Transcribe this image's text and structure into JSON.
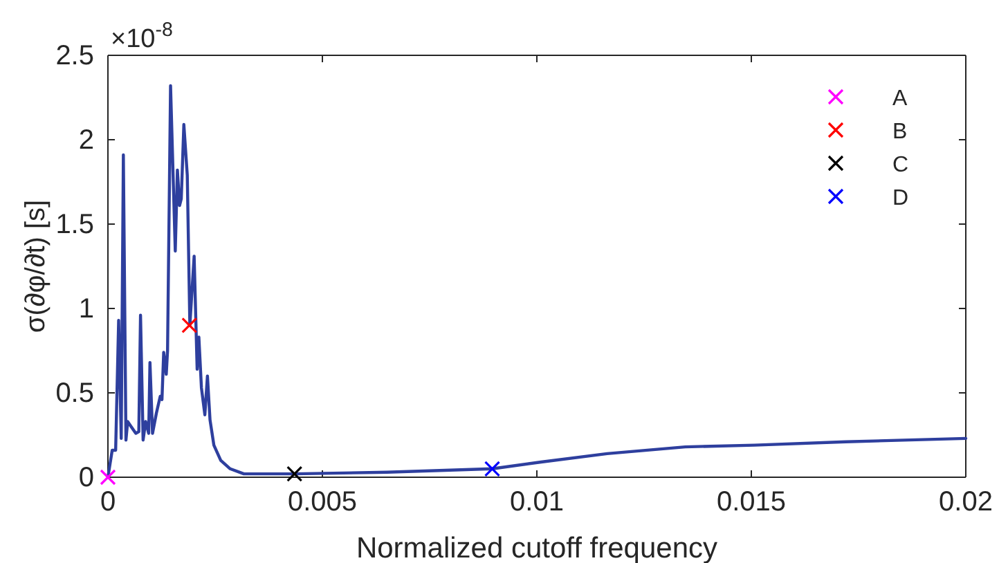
{
  "chart_data": {
    "type": "line",
    "xlabel": "Normalized cutoff frequency",
    "ylabel": "σ(∂φ/∂t) [s]",
    "annotations": [
      "×10$^{-8}$"
    ],
    "xlim": [
      0,
      0.02
    ],
    "ylim": [
      0,
      2.5
    ],
    "xticks": [
      0,
      0.005,
      0.01,
      0.015,
      0.02
    ],
    "yticks": [
      0,
      0.5,
      1,
      1.5,
      2,
      2.5
    ],
    "grid": false,
    "legend": "top right",
    "line_style": "solid",
    "series": [
      {
        "color": "#2e3f9e",
        "x": [
          0,
          0.0001,
          0.00018,
          0.00025,
          0.00031,
          0.00036,
          0.00042,
          0.00046,
          0.00054,
          0.00065,
          0.00072,
          0.00076,
          0.00082,
          0.00088,
          0.00095,
          0.00098,
          0.00104,
          0.00113,
          0.00122,
          0.00126,
          0.0013,
          0.00136,
          0.00139,
          0.00146,
          0.00157,
          0.00162,
          0.00167,
          0.00171,
          0.00177,
          0.00185,
          0.00191,
          0.00201,
          0.00208,
          0.00212,
          0.00218,
          0.00226,
          0.00232,
          0.00238,
          0.00247,
          0.00263,
          0.00285,
          0.00317,
          0.0037,
          0.00435,
          0.0065,
          0.00896,
          0.0101,
          0.01164,
          0.01346,
          0.01507,
          0.0172,
          0.02
        ],
        "values": [
          0,
          0.16,
          0.16,
          0.93,
          0.23,
          1.91,
          0.22,
          0.33,
          0.3,
          0.26,
          0.27,
          0.96,
          0.22,
          0.33,
          0.26,
          0.68,
          0.26,
          0.38,
          0.48,
          0.46,
          0.74,
          0.61,
          0.75,
          2.32,
          1.34,
          1.82,
          1.61,
          1.65,
          2.09,
          1.79,
          0.9,
          1.31,
          0.64,
          0.83,
          0.53,
          0.37,
          0.6,
          0.34,
          0.19,
          0.1,
          0.05,
          0.02,
          0.02,
          0.02,
          0.03,
          0.05,
          0.09,
          0.14,
          0.18,
          0.19,
          0.21,
          0.23
        ]
      },
      {
        "type": "scatter",
        "name": "A",
        "color": "#ff00ff",
        "marker": "cross",
        "x": [
          0
        ],
        "values": [
          0
        ]
      },
      {
        "type": "scatter",
        "name": "B",
        "color": "#ff0000",
        "marker": "cross",
        "x": [
          0.0019
        ],
        "values": [
          0.9
        ]
      },
      {
        "type": "scatter",
        "name": "C",
        "color": "#000000",
        "marker": "cross",
        "x": [
          0.00435
        ],
        "values": [
          0.02
        ]
      },
      {
        "type": "scatter",
        "name": "D",
        "color": "#0000ff",
        "marker": "cross",
        "x": [
          0.00896
        ],
        "values": [
          0.05
        ]
      }
    ]
  }
}
